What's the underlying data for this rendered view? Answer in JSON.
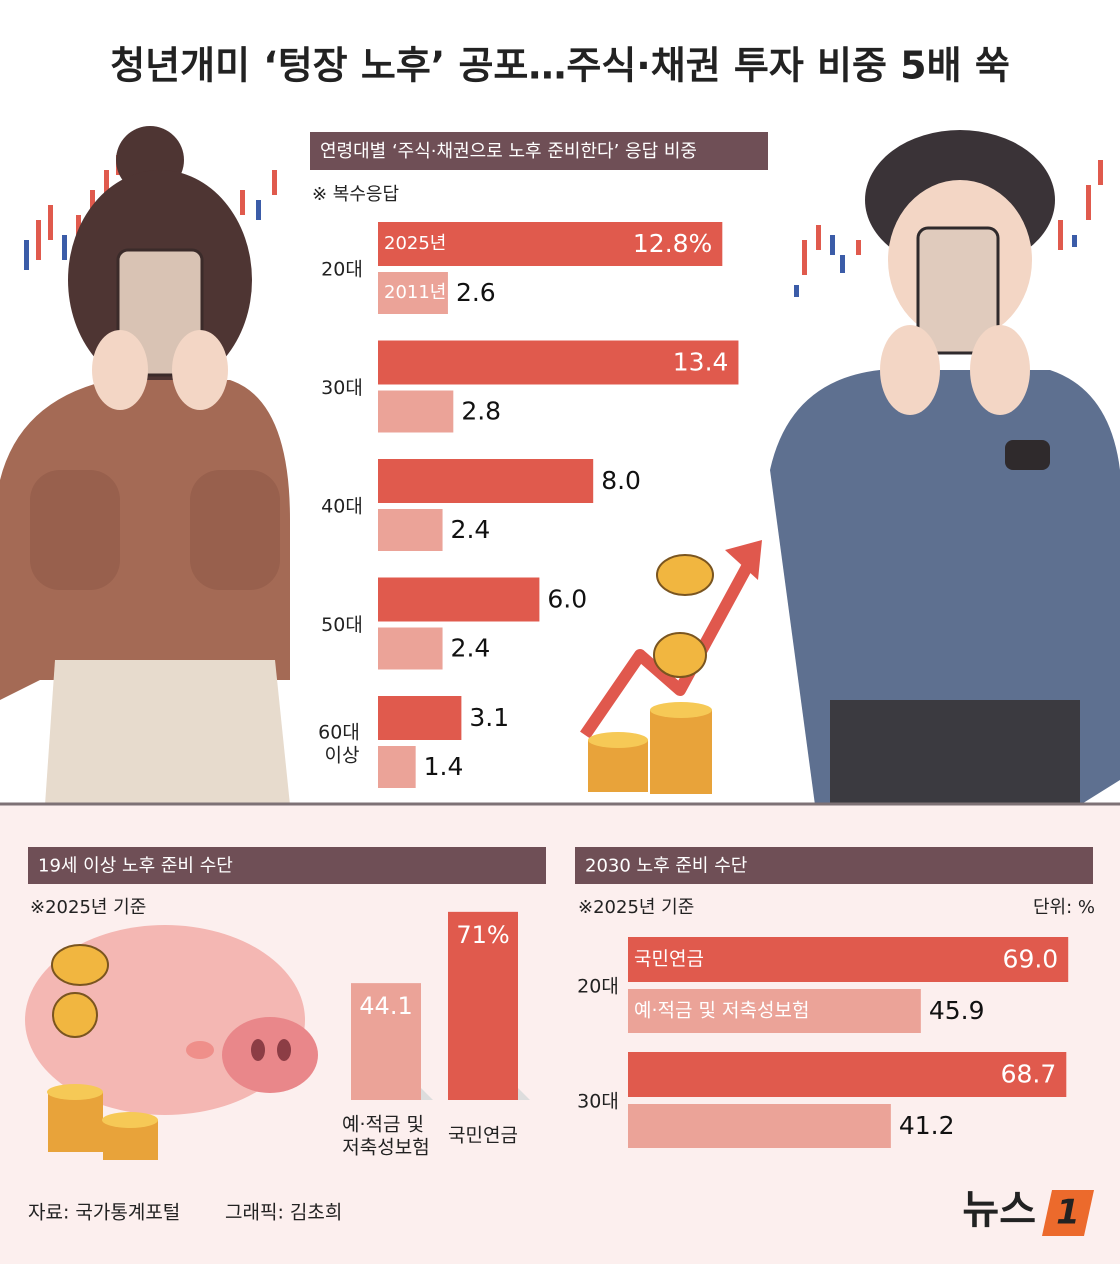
{
  "title": "청년개미 ‘텅장 노후’ 공포…주식·채권 투자 비중 5배 쑥",
  "source": "자료: 국가통계포털",
  "credit": "그래픽: 김초희",
  "logo": {
    "text": "뉴스",
    "mark": "1"
  },
  "chart_data": [
    {
      "type": "bar",
      "horizontal": true,
      "title": "연령대별 ‘주식·채권으로 노후 준비한다’ 응답 비중",
      "note": "※ 복수응답",
      "categories": [
        "20대",
        "30대",
        "40대",
        "50대",
        "60대 이상"
      ],
      "series": [
        {
          "name": "2025년",
          "color": "#e05a4d",
          "values": [
            12.8,
            13.4,
            8.0,
            6.0,
            3.1
          ],
          "value_labels": [
            "12.8%",
            "13.4",
            "8.0",
            "6.0",
            "3.1"
          ]
        },
        {
          "name": "2011년",
          "color": "#eba398",
          "values": [
            2.6,
            2.8,
            2.4,
            2.4,
            1.4
          ],
          "value_labels": [
            "2.6",
            "2.8",
            "2.4",
            "2.4",
            "1.4"
          ]
        }
      ]
    },
    {
      "type": "bar",
      "horizontal": false,
      "title": "19세 이상 노후 준비 수단",
      "note": "※2025년 기준",
      "categories": [
        "예·적금 및 저축성보험",
        "국민연금"
      ],
      "values": [
        44.1,
        71
      ],
      "value_labels": [
        "44.1",
        "71%"
      ],
      "colors": [
        "#eba398",
        "#e05a4d"
      ]
    },
    {
      "type": "bar",
      "horizontal": true,
      "title": "2030 노후 준비 수단",
      "note": "※2025년 기준",
      "unit": "단위: %",
      "categories": [
        "20대",
        "30대"
      ],
      "series": [
        {
          "name": "국민연금",
          "color": "#e05a4d",
          "values": [
            69.0,
            68.7
          ],
          "value_labels": [
            "69.0",
            "68.7"
          ]
        },
        {
          "name": "예·적금 및 저축성보험",
          "color": "#eba398",
          "values": [
            45.9,
            41.2
          ],
          "value_labels": [
            "45.9",
            "41.2"
          ]
        }
      ]
    }
  ]
}
